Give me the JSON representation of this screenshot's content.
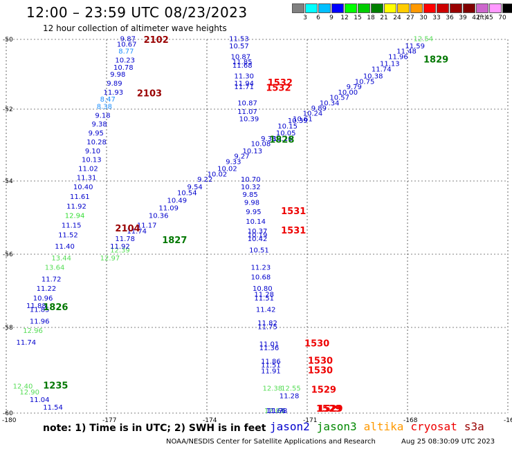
{
  "header": {
    "title": "12:00 – 23:59 UTC 08/23/2023",
    "subtitle": "12 hour collection of altimeter wave heights"
  },
  "legend": {
    "colors": [
      "#808080",
      "#00ffff",
      "#00bfff",
      "#0000ff",
      "#00ff00",
      "#00cc00",
      "#008000",
      "#ffff00",
      "#ffcc00",
      "#ff9900",
      "#ff0000",
      "#cc0000",
      "#990000",
      "#800000",
      "#cc66cc",
      "#ff99ff",
      "#000000"
    ],
    "labels": [
      "3",
      "6",
      "9",
      "12",
      "15",
      "18",
      "21",
      "24",
      "27",
      "30",
      "33",
      "36",
      "39",
      "42",
      "45",
      "70"
    ],
    "unit": "(ft)"
  },
  "axes": {
    "lon_labels": [
      "-180",
      "-177",
      "-174",
      "-171",
      "-168",
      "-16"
    ],
    "lat_labels": [
      "-50",
      "-52",
      "-54",
      "-56",
      "-58",
      "-60"
    ]
  },
  "map_data": {
    "points": [
      {
        "t": "9.87",
        "c": "#0000cc",
        "lon": -176.6,
        "lat": -50.05
      },
      {
        "t": "10.67",
        "c": "#0000cc",
        "lon": -176.7,
        "lat": -50.2
      },
      {
        "t": "8.77",
        "c": "#1e90ff",
        "lon": -176.65,
        "lat": -50.4
      },
      {
        "t": "10.23",
        "c": "#0000cc",
        "lon": -176.75,
        "lat": -50.65
      },
      {
        "t": "10.78",
        "c": "#0000cc",
        "lon": -176.8,
        "lat": -50.85
      },
      {
        "t": "9.98",
        "c": "#0000cc",
        "lon": -176.9,
        "lat": -51.05
      },
      {
        "t": "9.89",
        "c": "#0000cc",
        "lon": -177.0,
        "lat": -51.3
      },
      {
        "t": "11.93",
        "c": "#0000cc",
        "lon": -177.1,
        "lat": -51.55
      },
      {
        "t": "8.47",
        "c": "#1e90ff",
        "lon": -177.2,
        "lat": -51.75
      },
      {
        "t": "8.38",
        "c": "#1e90ff",
        "lon": -177.3,
        "lat": -51.95
      },
      {
        "t": "9.18",
        "c": "#0000cc",
        "lon": -177.35,
        "lat": -52.2
      },
      {
        "t": "9.38",
        "c": "#0000cc",
        "lon": -177.45,
        "lat": -52.45
      },
      {
        "t": "9.95",
        "c": "#0000cc",
        "lon": -177.55,
        "lat": -52.7
      },
      {
        "t": "10.28",
        "c": "#0000cc",
        "lon": -177.6,
        "lat": -52.95
      },
      {
        "t": "9.10",
        "c": "#0000cc",
        "lon": -177.65,
        "lat": -53.2
      },
      {
        "t": "10.13",
        "c": "#0000cc",
        "lon": -177.75,
        "lat": -53.45
      },
      {
        "t": "11.02",
        "c": "#0000cc",
        "lon": -177.85,
        "lat": -53.7
      },
      {
        "t": "11.31",
        "c": "#0000cc",
        "lon": -177.9,
        "lat": -53.95
      },
      {
        "t": "10.40",
        "c": "#0000cc",
        "lon": -178.0,
        "lat": -54.2
      },
      {
        "t": "11.61",
        "c": "#0000cc",
        "lon": -178.1,
        "lat": -54.45
      },
      {
        "t": "11.92",
        "c": "#0000cc",
        "lon": -178.2,
        "lat": -54.7
      },
      {
        "t": "12.94",
        "c": "#33dd33",
        "lon": -178.25,
        "lat": -54.95
      },
      {
        "t": "11.15",
        "c": "#0000cc",
        "lon": -178.35,
        "lat": -55.2
      },
      {
        "t": "11.52",
        "c": "#0000cc",
        "lon": -178.45,
        "lat": -55.45
      },
      {
        "t": "11.40",
        "c": "#0000cc",
        "lon": -178.55,
        "lat": -55.75
      },
      {
        "t": "13.44",
        "c": "#55dd55",
        "lon": -178.65,
        "lat": -56.05
      },
      {
        "t": "13.64",
        "c": "#55dd55",
        "lon": -178.85,
        "lat": -56.3
      },
      {
        "t": "11.72",
        "c": "#0000cc",
        "lon": -178.95,
        "lat": -56.6
      },
      {
        "t": "11.22",
        "c": "#0000cc",
        "lon": -179.1,
        "lat": -56.85
      },
      {
        "t": "10.96",
        "c": "#0000cc",
        "lon": -179.2,
        "lat": -57.1
      },
      {
        "t": "11.88",
        "c": "#0000cc",
        "lon": -179.4,
        "lat": -57.3
      },
      {
        "t": "11.85",
        "c": "#0000cc",
        "lon": -179.3,
        "lat": -57.4
      },
      {
        "t": "11.96",
        "c": "#0000cc",
        "lon": -179.3,
        "lat": -57.7
      },
      {
        "t": "12.96",
        "c": "#55dd55",
        "lon": -179.5,
        "lat": -57.95
      },
      {
        "t": "11.74",
        "c": "#0000cc",
        "lon": -179.7,
        "lat": -58.25
      },
      {
        "t": "12.40",
        "c": "#55dd55",
        "lon": -179.8,
        "lat": -59.4
      },
      {
        "t": "12.90",
        "c": "#55dd55",
        "lon": -179.6,
        "lat": -59.55
      },
      {
        "t": "11.04",
        "c": "#0000cc",
        "lon": -179.3,
        "lat": -59.75
      },
      {
        "t": "11.54",
        "c": "#0000cc",
        "lon": -178.9,
        "lat": -59.95
      },
      {
        "t": "12.39",
        "c": "#55dd55",
        "lon": -176.9,
        "lat": -55.85
      },
      {
        "t": "12.97",
        "c": "#55dd55",
        "lon": -177.2,
        "lat": -56.05
      },
      {
        "t": "11.92",
        "c": "#0000cc",
        "lon": -176.9,
        "lat": -55.75
      },
      {
        "t": "11.78",
        "c": "#0000cc",
        "lon": -176.75,
        "lat": -55.55
      },
      {
        "t": "11.74",
        "c": "#0000cc",
        "lon": -176.4,
        "lat": -55.35
      },
      {
        "t": "11.17",
        "c": "#0000cc",
        "lon": -176.1,
        "lat": -55.2
      },
      {
        "t": "10.36",
        "c": "#0000cc",
        "lon": -175.75,
        "lat": -54.95
      },
      {
        "t": "11.09",
        "c": "#0000cc",
        "lon": -175.45,
        "lat": -54.75
      },
      {
        "t": "10.49",
        "c": "#0000cc",
        "lon": -175.2,
        "lat": -54.55
      },
      {
        "t": "10.54",
        "c": "#0000cc",
        "lon": -174.9,
        "lat": -54.35
      },
      {
        "t": "9.54",
        "c": "#0000cc",
        "lon": -174.6,
        "lat": -54.2
      },
      {
        "t": "9.22",
        "c": "#0000cc",
        "lon": -174.3,
        "lat": -54.0
      },
      {
        "t": "10.02",
        "c": "#0000cc",
        "lon": -174.0,
        "lat": -53.85
      },
      {
        "t": "10.02",
        "c": "#0000cc",
        "lon": -173.7,
        "lat": -53.7
      },
      {
        "t": "9.33",
        "c": "#0000cc",
        "lon": -173.45,
        "lat": -53.5
      },
      {
        "t": "9.27",
        "c": "#0000cc",
        "lon": -173.2,
        "lat": -53.35
      },
      {
        "t": "10.13",
        "c": "#0000cc",
        "lon": -172.95,
        "lat": -53.2
      },
      {
        "t": "10.08",
        "c": "#0000cc",
        "lon": -172.7,
        "lat": -53.0
      },
      {
        "t": "9.33",
        "c": "#0000cc",
        "lon": -172.4,
        "lat": -52.85
      },
      {
        "t": "10.16",
        "c": "#0000cc",
        "lon": -172.05,
        "lat": -52.85
      },
      {
        "t": "10.05",
        "c": "#0000cc",
        "lon": -171.95,
        "lat": -52.7
      },
      {
        "t": "10.15",
        "c": "#0000cc",
        "lon": -171.9,
        "lat": -52.5
      },
      {
        "t": "10.39",
        "c": "#0000cc",
        "lon": -171.6,
        "lat": -52.35
      },
      {
        "t": "10.61",
        "c": "#0000cc",
        "lon": -171.45,
        "lat": -52.3
      },
      {
        "t": "10.24",
        "c": "#0000cc",
        "lon": -171.15,
        "lat": -52.15
      },
      {
        "t": "9.89",
        "c": "#0000cc",
        "lon": -170.9,
        "lat": -52.0
      },
      {
        "t": "10.34",
        "c": "#0000cc",
        "lon": -170.65,
        "lat": -51.85
      },
      {
        "t": "10.57",
        "c": "#0000cc",
        "lon": -170.35,
        "lat": -51.7
      },
      {
        "t": "10.00",
        "c": "#0000cc",
        "lon": -170.1,
        "lat": -51.55
      },
      {
        "t": "9.79",
        "c": "#0000cc",
        "lon": -169.85,
        "lat": -51.4
      },
      {
        "t": "10.75",
        "c": "#0000cc",
        "lon": -169.6,
        "lat": -51.25
      },
      {
        "t": "10.38",
        "c": "#0000cc",
        "lon": -169.35,
        "lat": -51.1
      },
      {
        "t": "11.74",
        "c": "#0000cc",
        "lon": -169.1,
        "lat": -50.9
      },
      {
        "t": "11.13",
        "c": "#0000cc",
        "lon": -168.85,
        "lat": -50.75
      },
      {
        "t": "11.96",
        "c": "#0000cc",
        "lon": -168.6,
        "lat": -50.55
      },
      {
        "t": "11.48",
        "c": "#0000cc",
        "lon": -168.35,
        "lat": -50.4
      },
      {
        "t": "11.59",
        "c": "#0000cc",
        "lon": -168.1,
        "lat": -50.25
      },
      {
        "t": "12.54",
        "c": "#55dd55",
        "lon": -167.85,
        "lat": -50.05
      },
      {
        "t": "11.53",
        "c": "#0000cc",
        "lon": -173.35,
        "lat": -50.05
      },
      {
        "t": "10.57",
        "c": "#0000cc",
        "lon": -173.35,
        "lat": -50.25
      },
      {
        "t": "10.87",
        "c": "#0000cc",
        "lon": -173.3,
        "lat": -50.55
      },
      {
        "t": "11.85",
        "c": "#0000cc",
        "lon": -173.25,
        "lat": -50.7
      },
      {
        "t": "11.68",
        "c": "#0000cc",
        "lon": -173.25,
        "lat": -50.8
      },
      {
        "t": "11.30",
        "c": "#0000cc",
        "lon": -173.2,
        "lat": -51.1
      },
      {
        "t": "11.94",
        "c": "#0000cc",
        "lon": -173.2,
        "lat": -51.3
      },
      {
        "t": "11.71",
        "c": "#0000cc",
        "lon": -173.2,
        "lat": -51.4
      },
      {
        "t": "10.87",
        "c": "#0000cc",
        "lon": -173.1,
        "lat": -51.85
      },
      {
        "t": "11.07",
        "c": "#0000cc",
        "lon": -173.1,
        "lat": -52.1
      },
      {
        "t": "10.39",
        "c": "#0000cc",
        "lon": -173.05,
        "lat": -52.3
      },
      {
        "t": "10.70",
        "c": "#0000cc",
        "lon": -173.0,
        "lat": -54.0
      },
      {
        "t": "10.32",
        "c": "#0000cc",
        "lon": -173.0,
        "lat": -54.2
      },
      {
        "t": "9.85",
        "c": "#0000cc",
        "lon": -172.95,
        "lat": -54.4
      },
      {
        "t": "9.98",
        "c": "#0000cc",
        "lon": -172.9,
        "lat": -54.6
      },
      {
        "t": "9.95",
        "c": "#0000cc",
        "lon": -172.85,
        "lat": -54.85
      },
      {
        "t": "10.14",
        "c": "#0000cc",
        "lon": -172.85,
        "lat": -55.1
      },
      {
        "t": "10.37",
        "c": "#0000cc",
        "lon": -172.8,
        "lat": -55.35
      },
      {
        "t": "10.19",
        "c": "#0000cc",
        "lon": -172.8,
        "lat": -55.45
      },
      {
        "t": "10.42",
        "c": "#0000cc",
        "lon": -172.8,
        "lat": -55.55
      },
      {
        "t": "10.51",
        "c": "#0000cc",
        "lon": -172.75,
        "lat": -55.85
      },
      {
        "t": "11.23",
        "c": "#0000cc",
        "lon": -172.7,
        "lat": -56.3
      },
      {
        "t": "10.68",
        "c": "#0000cc",
        "lon": -172.7,
        "lat": -56.55
      },
      {
        "t": "10.80",
        "c": "#0000cc",
        "lon": -172.65,
        "lat": -56.85
      },
      {
        "t": "11.28",
        "c": "#0000cc",
        "lon": -172.6,
        "lat": -57.0
      },
      {
        "t": "11.51",
        "c": "#0000cc",
        "lon": -172.6,
        "lat": -57.1
      },
      {
        "t": "11.42",
        "c": "#0000cc",
        "lon": -172.55,
        "lat": -57.4
      },
      {
        "t": "11.82",
        "c": "#0000cc",
        "lon": -172.5,
        "lat": -57.75
      },
      {
        "t": "11.75",
        "c": "#0000cc",
        "lon": -172.5,
        "lat": -57.85
      },
      {
        "t": "11.01",
        "c": "#0000cc",
        "lon": -172.45,
        "lat": -58.3
      },
      {
        "t": "11.36",
        "c": "#0000cc",
        "lon": -172.45,
        "lat": -58.4
      },
      {
        "t": "11.86",
        "c": "#0000cc",
        "lon": -172.4,
        "lat": -58.75
      },
      {
        "t": "11.51",
        "c": "#0000cc",
        "lon": -172.4,
        "lat": -58.85
      },
      {
        "t": "11.91",
        "c": "#0000cc",
        "lon": -172.4,
        "lat": -59.0
      },
      {
        "t": "12.38",
        "c": "#55dd55",
        "lon": -172.35,
        "lat": -59.45
      },
      {
        "t": "12.55",
        "c": "#55dd55",
        "lon": -171.8,
        "lat": -59.45
      },
      {
        "t": "11.28",
        "c": "#0000cc",
        "lon": -171.85,
        "lat": -59.65
      },
      {
        "t": "12.03",
        "c": "#55dd55",
        "lon": -172.3,
        "lat": -60.3
      },
      {
        "t": "11.66",
        "c": "#0000cc",
        "lon": -172.25,
        "lat": -60.55
      },
      {
        "t": "11.78",
        "c": "#0000cc",
        "lon": -172.2,
        "lat": -60.8
      }
    ],
    "time_labels": [
      {
        "t": "2102",
        "c": "#990000",
        "lon": -175.9,
        "lat": -50.1
      },
      {
        "t": "2103",
        "c": "#990000",
        "lon": -176.1,
        "lat": -51.6
      },
      {
        "t": "2104",
        "c": "#990000",
        "lon": -176.75,
        "lat": -55.3
      },
      {
        "t": "1827",
        "c": "#007700",
        "lon": -175.35,
        "lat": -55.6
      },
      {
        "t": "1826",
        "c": "#007700",
        "lon": -178.9,
        "lat": -57.35
      },
      {
        "t": "1235",
        "c": "#007700",
        "lon": -178.9,
        "lat": -59.4
      },
      {
        "t": "1829",
        "c": "#007700",
        "lon": -167.55,
        "lat": -50.65
      },
      {
        "t": "1828",
        "c": "#007700",
        "lon": -172.15,
        "lat": -52.9
      },
      {
        "t": "1532",
        "c": "#ee0000",
        "lon": -172.2,
        "lat": -51.3
      },
      {
        "t": "1532",
        "c": "#ee0000",
        "lon": -172.25,
        "lat": -51.45
      },
      {
        "t": "1531",
        "c": "#ee0000",
        "lon": -171.8,
        "lat": -54.85
      },
      {
        "t": "1531",
        "c": "#ee0000",
        "lon": -171.8,
        "lat": -55.35
      },
      {
        "t": "1530",
        "c": "#ee0000",
        "lon": -171.1,
        "lat": -58.3
      },
      {
        "t": "1530",
        "c": "#ee0000",
        "lon": -171.0,
        "lat": -58.75
      },
      {
        "t": "1530",
        "c": "#ee0000",
        "lon": -171.0,
        "lat": -59.0
      },
      {
        "t": "1529",
        "c": "#ee0000",
        "lon": -170.9,
        "lat": -59.5
      },
      {
        "t": "1529",
        "c": "#ee0000",
        "lon": -170.7,
        "lat": -60.3
      },
      {
        "t": "1529",
        "c": "#ee0000",
        "lon": -170.75,
        "lat": -60.55
      }
    ]
  },
  "footer": {
    "note": "note: 1) Time is in UTC; 2) SWH is in feet",
    "satellites": [
      {
        "name": "jason2",
        "color": "#0000cc"
      },
      {
        "name": "jason3",
        "color": "#008800"
      },
      {
        "name": "altika",
        "color": "#ff9900"
      },
      {
        "name": "cryosat",
        "color": "#ee0000"
      },
      {
        "name": "s3a",
        "color": "#990000"
      }
    ],
    "credit": "NOAA/NESDIS Center for Satellite Applications and Research",
    "generated": "Aug 25 08:30:09 UTC 2023"
  }
}
